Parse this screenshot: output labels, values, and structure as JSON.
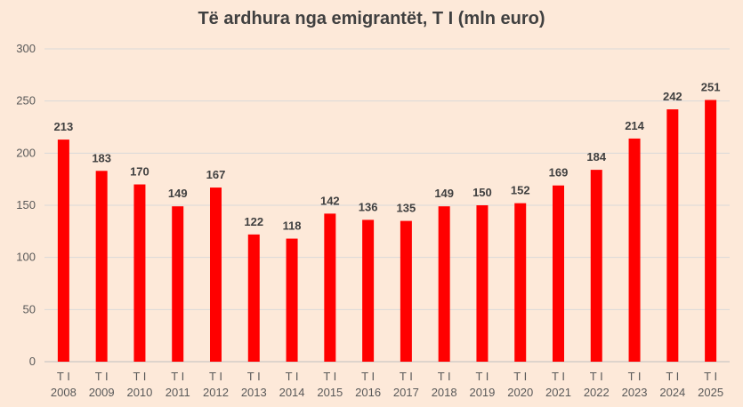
{
  "chart_data": {
    "type": "bar",
    "title": "Të ardhura nga emigrantët, T I (mln euro)",
    "xlabel": "",
    "ylabel": "",
    "categories": [
      [
        "T I",
        "2008"
      ],
      [
        "T I",
        "2009"
      ],
      [
        "T I",
        "2010"
      ],
      [
        "T I",
        "2011"
      ],
      [
        "T I",
        "2012"
      ],
      [
        "T I",
        "2013"
      ],
      [
        "T I",
        "2014"
      ],
      [
        "T I",
        "2015"
      ],
      [
        "T I",
        "2016"
      ],
      [
        "T I",
        "2017"
      ],
      [
        "T I",
        "2018"
      ],
      [
        "T I",
        "2019"
      ],
      [
        "T I",
        "2020"
      ],
      [
        "T I",
        "2021"
      ],
      [
        "T I",
        "2022"
      ],
      [
        "T I",
        "2023"
      ],
      [
        "T I",
        "2024"
      ],
      [
        "T I",
        "2025"
      ]
    ],
    "values": [
      213,
      183,
      170,
      149,
      167,
      122,
      118,
      142,
      136,
      135,
      149,
      150,
      152,
      169,
      184,
      214,
      242,
      251
    ],
    "ylim": [
      0,
      300
    ],
    "yticks": [
      0,
      50,
      100,
      150,
      200,
      250,
      300
    ],
    "grid": true,
    "legend": "none",
    "data_labels": true,
    "bar_color": "#FF0000",
    "background_color": "#FDE9D9",
    "grid_color": "#D9D9D9"
  }
}
